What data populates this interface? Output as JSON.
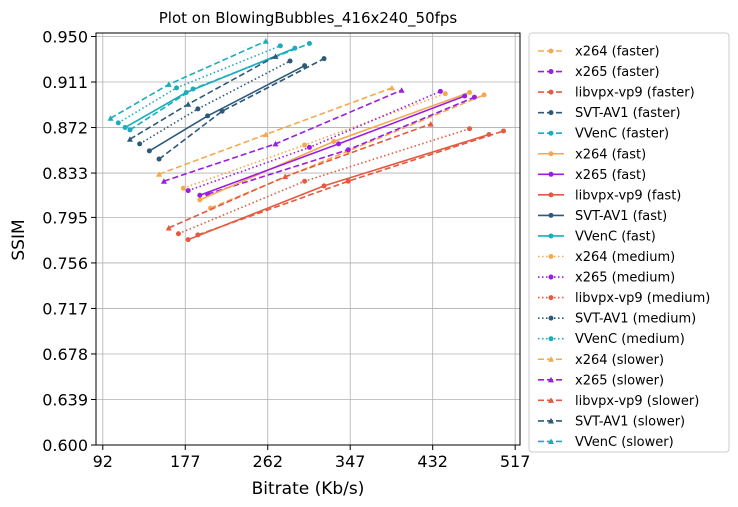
{
  "chart_data": {
    "type": "line",
    "title": "Plot on BlowingBubbles_416x240_50fps",
    "xlabel": "Bitrate (Kb/s)",
    "ylabel": "SSIM",
    "xlim": [
      85,
      522
    ],
    "ylim": [
      0.6,
      0.953
    ],
    "xticks": [
      92,
      177,
      262,
      347,
      432,
      517
    ],
    "yticks": [
      0.6,
      0.639,
      0.678,
      0.717,
      0.756,
      0.795,
      0.833,
      0.872,
      0.911,
      0.95
    ],
    "xtick_labels": [
      "92",
      "177",
      "262",
      "347",
      "432",
      "517"
    ],
    "ytick_labels": [
      "0.600",
      "0.639",
      "0.678",
      "0.717",
      "0.756",
      "0.795",
      "0.833",
      "0.872",
      "0.911",
      "0.950"
    ],
    "grid": true,
    "legend_position": "outside-right",
    "series": [
      {
        "name": "x264 (faster)",
        "color": "#f5a94e",
        "dash": "dashed",
        "marker": "circle",
        "x": [
          203,
          345,
          485
        ],
        "y": [
          0.803,
          0.852,
          0.9
        ]
      },
      {
        "name": "x265 (faster)",
        "color": "#9b1ce3",
        "dash": "dashed",
        "marker": "circle",
        "x": [
          200,
          345,
          475
        ],
        "y": [
          0.815,
          0.853,
          0.898
        ]
      },
      {
        "name": "libvpx-vp9 (faster)",
        "color": "#e55a3f",
        "dash": "dashed",
        "marker": "circle",
        "x": [
          190,
          345,
          505
        ],
        "y": [
          0.78,
          0.826,
          0.869
        ]
      },
      {
        "name": "SVT-AV1 (faster)",
        "color": "#2d5a7a",
        "dash": "dashed",
        "marker": "circle",
        "x": [
          150,
          215,
          320
        ],
        "y": [
          0.845,
          0.886,
          0.931
        ]
      },
      {
        "name": "VVenC (faster)",
        "color": "#1aadbf",
        "dash": "dashed",
        "marker": "circle",
        "x": [
          120,
          185,
          305
        ],
        "y": [
          0.87,
          0.905,
          0.944
        ]
      },
      {
        "name": "x264 (fast)",
        "color": "#f5a94e",
        "dash": "solid",
        "marker": "circle",
        "x": [
          192,
          330,
          470
        ],
        "y": [
          0.81,
          0.86,
          0.902
        ]
      },
      {
        "name": "x265 (fast)",
        "color": "#9b1ce3",
        "dash": "solid",
        "marker": "circle",
        "x": [
          192,
          335,
          465
        ],
        "y": [
          0.814,
          0.858,
          0.899
        ]
      },
      {
        "name": "libvpx-vp9 (fast)",
        "color": "#e55a3f",
        "dash": "solid",
        "marker": "circle",
        "x": [
          180,
          320,
          490
        ],
        "y": [
          0.776,
          0.822,
          0.866
        ]
      },
      {
        "name": "SVT-AV1 (fast)",
        "color": "#2d5a7a",
        "dash": "solid",
        "marker": "circle",
        "x": [
          140,
          200,
          300
        ],
        "y": [
          0.852,
          0.882,
          0.925
        ]
      },
      {
        "name": "VVenC (fast)",
        "color": "#1aadbf",
        "dash": "solid",
        "marker": "circle",
        "x": [
          115,
          178,
          290
        ],
        "y": [
          0.872,
          0.902,
          0.94
        ]
      },
      {
        "name": "x264 (medium)",
        "color": "#f5a94e",
        "dash": "dotted",
        "marker": "circle",
        "x": [
          175,
          300,
          445
        ],
        "y": [
          0.82,
          0.857,
          0.901
        ]
      },
      {
        "name": "x265 (medium)",
        "color": "#9b1ce3",
        "dash": "dotted",
        "marker": "circle",
        "x": [
          180,
          305,
          440
        ],
        "y": [
          0.818,
          0.855,
          0.903
        ]
      },
      {
        "name": "libvpx-vp9 (medium)",
        "color": "#e55a3f",
        "dash": "dotted",
        "marker": "circle",
        "x": [
          170,
          300,
          470
        ],
        "y": [
          0.781,
          0.826,
          0.871
        ]
      },
      {
        "name": "SVT-AV1 (medium)",
        "color": "#2d5a7a",
        "dash": "dotted",
        "marker": "circle",
        "x": [
          130,
          190,
          285
        ],
        "y": [
          0.858,
          0.888,
          0.929
        ]
      },
      {
        "name": "VVenC (medium)",
        "color": "#1aadbf",
        "dash": "dotted",
        "marker": "circle",
        "x": [
          108,
          168,
          275
        ],
        "y": [
          0.876,
          0.906,
          0.942
        ]
      },
      {
        "name": "x264 (slower)",
        "color": "#f5a94e",
        "dash": "dashed",
        "marker": "triangle",
        "x": [
          150,
          260,
          390
        ],
        "y": [
          0.832,
          0.866,
          0.906
        ]
      },
      {
        "name": "x265 (slower)",
        "color": "#9b1ce3",
        "dash": "dashed",
        "marker": "triangle",
        "x": [
          155,
          270,
          400
        ],
        "y": [
          0.826,
          0.858,
          0.904
        ]
      },
      {
        "name": "libvpx-vp9 (slower)",
        "color": "#e55a3f",
        "dash": "dashed",
        "marker": "triangle",
        "x": [
          160,
          280,
          430
        ],
        "y": [
          0.786,
          0.83,
          0.875
        ]
      },
      {
        "name": "SVT-AV1 (slower)",
        "color": "#2d5a7a",
        "dash": "dashed",
        "marker": "triangle",
        "x": [
          120,
          180,
          270
        ],
        "y": [
          0.862,
          0.892,
          0.933
        ]
      },
      {
        "name": "VVenC (slower)",
        "color": "#1aadbf",
        "dash": "dashed",
        "marker": "triangle",
        "x": [
          100,
          160,
          260
        ],
        "y": [
          0.88,
          0.909,
          0.946
        ]
      }
    ]
  }
}
